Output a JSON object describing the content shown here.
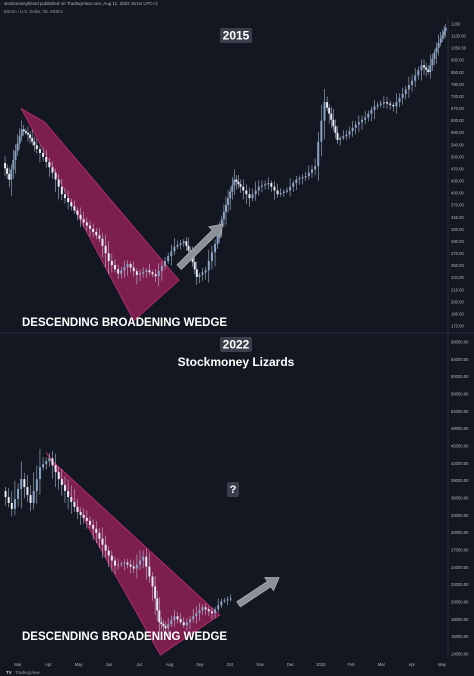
{
  "header": {
    "publisher_line": "stockmoneylizard published on TradingView.com, Aug 11, 2022 16:04 UTC+2",
    "symbol_line": "Bitcoin / U.S. Dollar, 3D, INDEX"
  },
  "footer": {
    "logo": "TV",
    "brand": "TradingView"
  },
  "colors": {
    "background": "#131722",
    "wedge_fill": "#a5235f",
    "candle_body": "#8aa4c8",
    "arrow": "#8c9099",
    "label_box": "#3a3f4b"
  },
  "chart_data": [
    {
      "type": "candlestick",
      "panel": "top",
      "title": "2015",
      "annotation": "DESCENDING BROADENING WEDGE",
      "y_scale": "log",
      "ylim": [
        158,
        1260
      ],
      "xlim": [
        0,
        14.2
      ],
      "y_ticks": [
        "1260",
        "1130.00",
        "1050.00",
        "930.00",
        "850.00",
        "790.00",
        "720.00",
        "670.00",
        "630.00",
        "590.00",
        "540.00",
        "500.00",
        "470.00",
        "430.00",
        "400.00",
        "370.00",
        "345.00",
        "320.00",
        "290.00",
        "270.00",
        "250.00",
        "234.00",
        "216.00",
        "200.00",
        "186.00",
        "173.00"
      ],
      "price_path": [
        [
          0,
          480
        ],
        [
          0.2,
          430
        ],
        [
          0.4,
          520
        ],
        [
          0.6,
          600
        ],
        [
          0.8,
          580
        ],
        [
          1.0,
          540
        ],
        [
          1.3,
          500
        ],
        [
          1.6,
          450
        ],
        [
          1.9,
          390
        ],
        [
          2.2,
          360
        ],
        [
          2.5,
          330
        ],
        [
          2.8,
          310
        ],
        [
          3.1,
          290
        ],
        [
          3.4,
          250
        ],
        [
          3.7,
          230
        ],
        [
          4.0,
          245
        ],
        [
          4.3,
          228
        ],
        [
          4.6,
          235
        ],
        [
          4.9,
          226
        ],
        [
          5.2,
          250
        ],
        [
          5.5,
          275
        ],
        [
          5.8,
          285
        ],
        [
          6.0,
          260
        ],
        [
          6.2,
          225
        ],
        [
          6.5,
          235
        ],
        [
          6.8,
          280
        ],
        [
          7.0,
          330
        ],
        [
          7.2,
          380
        ],
        [
          7.4,
          430
        ],
        [
          7.6,
          410
        ],
        [
          7.9,
          380
        ],
        [
          8.2,
          410
        ],
        [
          8.5,
          420
        ],
        [
          8.8,
          390
        ],
        [
          9.1,
          400
        ],
        [
          9.4,
          430
        ],
        [
          9.7,
          440
        ],
        [
          10.0,
          470
        ],
        [
          10.3,
          720
        ],
        [
          10.5,
          640
        ],
        [
          10.7,
          560
        ],
        [
          11.0,
          580
        ],
        [
          11.3,
          620
        ],
        [
          11.6,
          650
        ],
        [
          11.9,
          700
        ],
        [
          12.2,
          720
        ],
        [
          12.5,
          700
        ],
        [
          12.8,
          760
        ],
        [
          13.1,
          830
        ],
        [
          13.4,
          920
        ],
        [
          13.6,
          880
        ],
        [
          13.8,
          1000
        ],
        [
          14.0,
          1100
        ],
        [
          14.15,
          1180
        ]
      ],
      "wedge": [
        [
          0.55,
          690
        ],
        [
          1.3,
          630
        ],
        [
          5.6,
          220
        ],
        [
          4.15,
          168
        ]
      ],
      "arrow": {
        "from": [
          5.6,
          240
        ],
        "to": [
          7.0,
          320
        ]
      }
    },
    {
      "type": "candlestick",
      "panel": "bottom",
      "title": "2022",
      "subtitle": "Stockmoney Lizards",
      "annotation": "DESCENDING BROADENING WEDGE",
      "question_label": "?",
      "y_scale": "linear",
      "ylim": [
        14000,
        68000
      ],
      "xlim": [
        0,
        14.2
      ],
      "x_ticks": [
        "Mar",
        "Apr",
        "May",
        "Jun",
        "Jul",
        "Aug",
        "Sep",
        "Oct",
        "Nov",
        "Dec",
        "2023",
        "Feb",
        "Mar",
        "Apr",
        "May"
      ],
      "y_ticks": [
        "68000.00",
        "64000.00",
        "60000.00",
        "56000.00",
        "52000.00",
        "48000.00",
        "45000.00",
        "42000.00",
        "39000.00",
        "36000.00",
        "33000.00",
        "30000.00",
        "27000.00",
        "24000.00",
        "22000.00",
        "20000.00",
        "18000.00",
        "16000.00",
        "14000.00"
      ],
      "price_path": [
        [
          0,
          42000
        ],
        [
          0.3,
          39000
        ],
        [
          0.6,
          44000
        ],
        [
          0.9,
          40000
        ],
        [
          1.2,
          46000
        ],
        [
          1.5,
          47500
        ],
        [
          1.8,
          44000
        ],
        [
          2.1,
          41000
        ],
        [
          2.4,
          38500
        ],
        [
          2.7,
          37000
        ],
        [
          3.0,
          35000
        ],
        [
          3.3,
          32000
        ],
        [
          3.6,
          29500
        ],
        [
          3.9,
          30000
        ],
        [
          4.2,
          29000
        ],
        [
          4.5,
          31000
        ],
        [
          4.8,
          26000
        ],
        [
          5.0,
          20000
        ],
        [
          5.2,
          19000
        ],
        [
          5.5,
          21000
        ],
        [
          5.8,
          19500
        ],
        [
          6.1,
          21000
        ],
        [
          6.4,
          22500
        ],
        [
          6.7,
          21500
        ],
        [
          7.0,
          23500
        ],
        [
          7.3,
          24000
        ]
      ],
      "wedge": [
        [
          1.35,
          48500
        ],
        [
          1.55,
          47000
        ],
        [
          6.9,
          21200
        ],
        [
          5.0,
          14500
        ]
      ],
      "arrow": {
        "from": [
          7.5,
          23000
        ],
        "to": [
          8.8,
          27500
        ]
      }
    }
  ]
}
